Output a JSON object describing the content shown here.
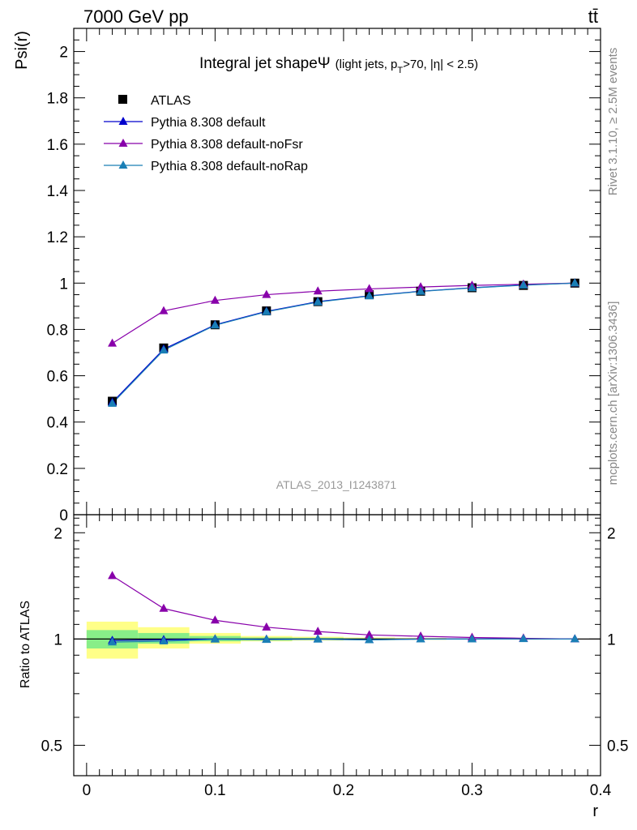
{
  "header": {
    "left": "7000 GeV pp",
    "right": "tt̄"
  },
  "side_labels": {
    "rivet": "Rivet 3.1.10, ≥ 2.5M events",
    "mcplots": "mcplots.cern.ch [arXiv:1306.3436]"
  },
  "chart_data": [
    {
      "type": "line",
      "title": "Integral jet shape",
      "title_symbol": "Ψ",
      "title_sub_prefix": "(light jets, p",
      "title_sub_index": "T",
      "title_sub_suffix": ">70, |η| < 2.5)",
      "analysis_label": "ATLAS_2013_I1243871",
      "ylabel": "Psi(r)",
      "xlabel": "r",
      "xlim": [
        -0.01,
        0.4
      ],
      "ylim": [
        0,
        2.1
      ],
      "x_ticks": [
        "0",
        "0.1",
        "0.2",
        "0.3",
        "0.4"
      ],
      "y_ticks": [
        "0",
        "0.2",
        "0.4",
        "0.6",
        "0.8",
        "1",
        "1.2",
        "1.4",
        "1.6",
        "1.8",
        "2"
      ],
      "x": [
        0.02,
        0.06,
        0.1,
        0.14,
        0.18,
        0.22,
        0.26,
        0.3,
        0.34,
        0.38
      ],
      "series": [
        {
          "name": "ATLAS",
          "marker": "square",
          "color": "#000000",
          "values": [
            0.49,
            0.72,
            0.82,
            0.88,
            0.92,
            0.95,
            0.965,
            0.98,
            0.99,
            1.0
          ]
        },
        {
          "name": "Pythia 8.308 default",
          "marker": "triangle",
          "color": "#0000cc",
          "values": [
            0.485,
            0.715,
            0.82,
            0.878,
            0.92,
            0.945,
            0.965,
            0.98,
            0.992,
            1.0
          ]
        },
        {
          "name": "Pythia 8.308 default-noFsr",
          "marker": "triangle",
          "color": "#8800aa",
          "values": [
            0.74,
            0.88,
            0.925,
            0.95,
            0.965,
            0.975,
            0.983,
            0.99,
            0.995,
            1.0
          ]
        },
        {
          "name": "Pythia 8.308 default-noRap",
          "marker": "triangle",
          "color": "#1a7fb5",
          "values": [
            0.48,
            0.71,
            0.818,
            0.876,
            0.918,
            0.944,
            0.964,
            0.979,
            0.991,
            1.0
          ]
        }
      ]
    },
    {
      "type": "line",
      "ylabel": "Ratio to ATLAS",
      "xlabel": "r",
      "xlim": [
        -0.01,
        0.4
      ],
      "ylim": [
        0.41,
        2.25
      ],
      "y_ticks": [
        "0.5",
        "1",
        "2"
      ],
      "x": [
        0.02,
        0.06,
        0.1,
        0.14,
        0.18,
        0.22,
        0.26,
        0.3,
        0.34,
        0.38
      ],
      "bands": {
        "x_edges": [
          0.0,
          0.04,
          0.08,
          0.12,
          0.16,
          0.2,
          0.24,
          0.28,
          0.32,
          0.36,
          0.4
        ],
        "yellow_low": [
          0.88,
          0.94,
          0.97,
          0.985,
          0.99,
          0.993,
          0.995,
          1.0,
          1.0,
          1.0
        ],
        "yellow_high": [
          1.12,
          1.08,
          1.04,
          1.02,
          1.015,
          1.01,
          1.007,
          1.0,
          1.0,
          1.0
        ],
        "green_low": [
          0.94,
          0.97,
          0.985,
          0.99,
          0.994,
          0.996,
          0.998,
          1.0,
          1.0,
          1.0
        ],
        "green_high": [
          1.06,
          1.04,
          1.02,
          1.01,
          1.008,
          1.005,
          1.003,
          1.0,
          1.0,
          1.0
        ],
        "yellow_color": "#ffff88",
        "green_color": "#88ee88"
      },
      "series": [
        {
          "name": "Pythia 8.308 default",
          "color": "#0000cc",
          "values": [
            0.99,
            0.995,
            1.0,
            0.998,
            1.0,
            0.995,
            1.0,
            1.0,
            1.002,
            1.0
          ]
        },
        {
          "name": "Pythia 8.308 default-noFsr",
          "color": "#8800aa",
          "values": [
            1.51,
            1.22,
            1.13,
            1.08,
            1.05,
            1.027,
            1.018,
            1.01,
            1.005,
            1.0
          ]
        },
        {
          "name": "Pythia 8.308 default-noRap",
          "color": "#1a7fb5",
          "values": [
            0.98,
            0.986,
            0.998,
            0.996,
            0.998,
            0.994,
            0.999,
            0.999,
            1.001,
            1.0
          ]
        }
      ]
    }
  ]
}
